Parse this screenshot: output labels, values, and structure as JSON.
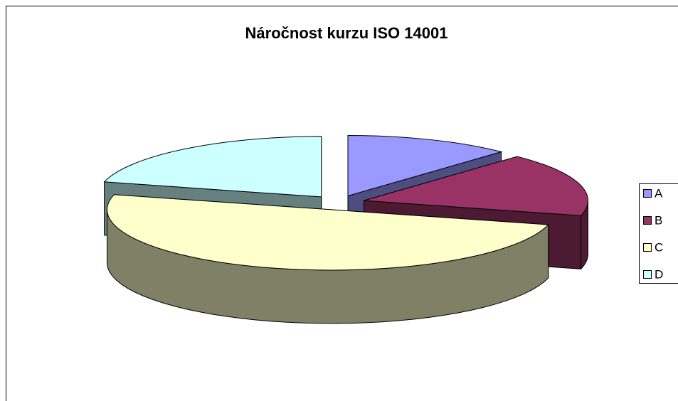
{
  "chart_data": {
    "type": "pie",
    "title": "Náročnost kurzu ISO 14001",
    "categories": [
      "A",
      "B",
      "C",
      "D"
    ],
    "values": [
      12,
      17,
      50,
      21
    ],
    "colors": [
      "#9999ff",
      "#993366",
      "#ffffcc",
      "#ccffff"
    ],
    "legend": "right"
  }
}
